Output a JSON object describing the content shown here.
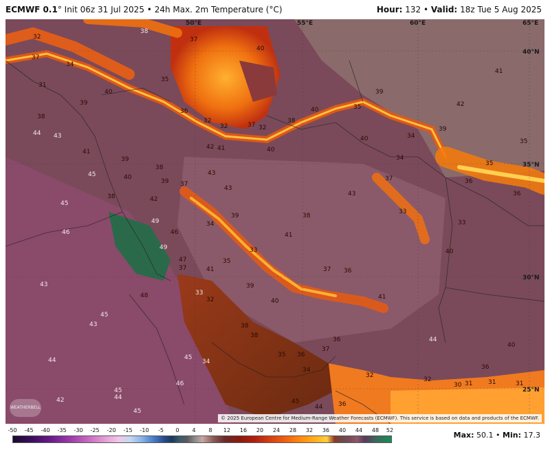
{
  "header": {
    "model": "ECMWF 0.1",
    "degree": "°",
    "init": "Init 06z 31 Jul 2025",
    "product": "24h Max. 2m Temperature (°C)",
    "hour_label": "Hour:",
    "hour_value": "132",
    "valid_label": "Valid:",
    "valid_value": "18z Tue 5 Aug 2025"
  },
  "map": {
    "grid_labels": [
      "50°E",
      "55°E",
      "60°E",
      "65°E",
      "40°N",
      "35°N",
      "30°N",
      "25°N"
    ],
    "temperature_labels": [
      "38",
      "32",
      "37",
      "34",
      "37",
      "31",
      "40",
      "35",
      "40",
      "39",
      "38",
      "44",
      "43",
      "41",
      "45",
      "38",
      "40",
      "36",
      "32",
      "32",
      "37",
      "32",
      "38",
      "42",
      "41",
      "40",
      "39",
      "38",
      "43",
      "39",
      "37",
      "42",
      "49",
      "46",
      "47",
      "49",
      "41",
      "43",
      "39",
      "41",
      "38",
      "34",
      "33",
      "35",
      "41",
      "36",
      "37",
      "39",
      "40",
      "45",
      "46",
      "43",
      "38",
      "38",
      "48",
      "33",
      "32",
      "37",
      "45",
      "43",
      "34",
      "35",
      "36",
      "37",
      "36",
      "34",
      "32",
      "45",
      "46",
      "44",
      "45",
      "44",
      "45",
      "42",
      "45",
      "44",
      "36",
      "44",
      "40",
      "36",
      "39",
      "40",
      "42",
      "41",
      "40",
      "37",
      "43",
      "33",
      "35",
      "39",
      "34",
      "34",
      "36",
      "35",
      "32",
      "31",
      "33",
      "40",
      "31",
      "35",
      "36",
      "31",
      "30"
    ],
    "copyright": "© 2025 European Centre for Medium-Range Weather Forecasts (ECMWF). This service is based on data and products of the ECMWF.",
    "logo_text": "WEATHERBELL"
  },
  "legend": {
    "ticks": [
      "-50",
      "-45",
      "-40",
      "-35",
      "-30",
      "-25",
      "-20",
      "-15",
      "-10",
      "-5",
      "0",
      "4",
      "8",
      "12",
      "16",
      "20",
      "24",
      "28",
      "32",
      "36",
      "40",
      "44",
      "48",
      "52"
    ]
  },
  "stats": {
    "max_label": "Max:",
    "max_value": "50.1",
    "min_label": "Min:",
    "min_value": "17.3"
  }
}
